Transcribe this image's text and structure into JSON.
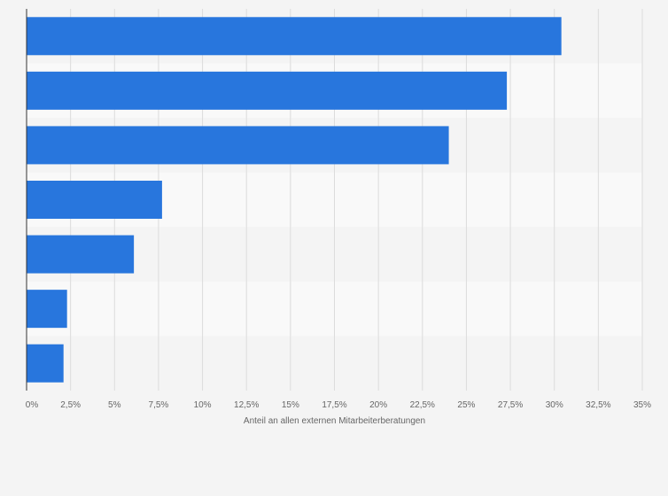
{
  "chart_data": {
    "type": "bar",
    "orientation": "horizontal",
    "categories": [
      "",
      "",
      "",
      "",
      "",
      "",
      ""
    ],
    "values": [
      30.4,
      27.3,
      24.0,
      7.7,
      6.1,
      2.3,
      2.1
    ],
    "xlabel": "Anteil an allen externen Mitarbeiterberatungen",
    "xlim": [
      0,
      35
    ],
    "xticks": [
      0,
      2.5,
      5,
      7.5,
      10,
      12.5,
      15,
      17.5,
      20,
      22.5,
      25,
      27.5,
      30,
      32.5,
      35
    ],
    "xtick_labels": [
      "0%",
      "2,5%",
      "5%",
      "7,5%",
      "10%",
      "12,5%",
      "15%",
      "17,5%",
      "20%",
      "22,5%",
      "25%",
      "27,5%",
      "30%",
      "32,5%",
      "35%"
    ],
    "grid": "vertical",
    "colors": {
      "bar": "#2876dd",
      "band_light": "#f9f9f9",
      "band_dark": "#f4f4f4",
      "grid": "#dcdcdc",
      "axis": "#333333"
    }
  }
}
